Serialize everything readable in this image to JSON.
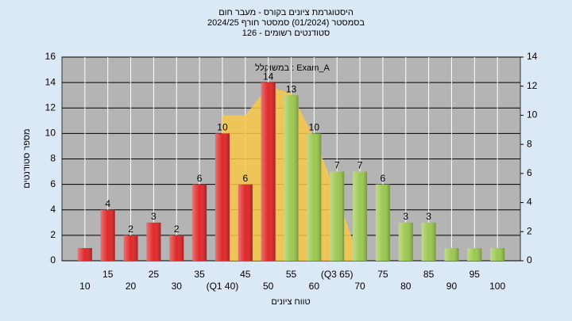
{
  "chart_data": {
    "type": "bar",
    "title": "היסטוגרמת ציונים בקורס - מעבר חום",
    "subtitle": "בסמסטר  (01/2024)  סמסטר חורף 2024/25",
    "subtitle2": "סטודנטים רשומים - 126",
    "annotation": "במשוקלל : Exam_A",
    "y_label": "מספר סטודנטים",
    "x_label": "טווח ציונים",
    "categories": [
      "10",
      "15",
      "20",
      "25",
      "30",
      "35",
      "(Q1 40)",
      "45",
      "50",
      "55",
      "60",
      "(Q3 65)",
      "70",
      "75",
      "80",
      "85",
      "90",
      "95",
      "100"
    ],
    "values": [
      1,
      4,
      2,
      3,
      2,
      6,
      10,
      6,
      14,
      13,
      10,
      7,
      7,
      6,
      3,
      3,
      1,
      1,
      1
    ],
    "value_labels": [
      null,
      "4",
      "2",
      "3",
      "2",
      "6",
      "10",
      "6",
      "14",
      "13",
      "10",
      "7",
      "7",
      "6",
      "3",
      "3",
      null,
      null,
      null
    ],
    "colors": [
      "#e02828",
      "#e02828",
      "#e02828",
      "#e02828",
      "#e02828",
      "#e02828",
      "#e02828",
      "#e02828",
      "#e02828",
      "#9cc850",
      "#9cc850",
      "#9cc850",
      "#9cc850",
      "#9cc850",
      "#9cc850",
      "#9cc850",
      "#9cc850",
      "#9cc850",
      "#9cc850"
    ],
    "curve": {
      "axis": "y2",
      "color": "#f8c848",
      "values": [
        null,
        null,
        null,
        null,
        null,
        null,
        10,
        10,
        12,
        11.5,
        8.5,
        4.5,
        0,
        null,
        null,
        null,
        null,
        null,
        null
      ]
    },
    "ylim": [
      0,
      16
    ],
    "yticks": [
      0,
      2,
      4,
      6,
      8,
      10,
      12,
      14,
      16
    ],
    "y2lim": [
      0,
      14
    ],
    "y2ticks": [
      0,
      2,
      4,
      6,
      8,
      10,
      12,
      14
    ],
    "grid": true
  }
}
